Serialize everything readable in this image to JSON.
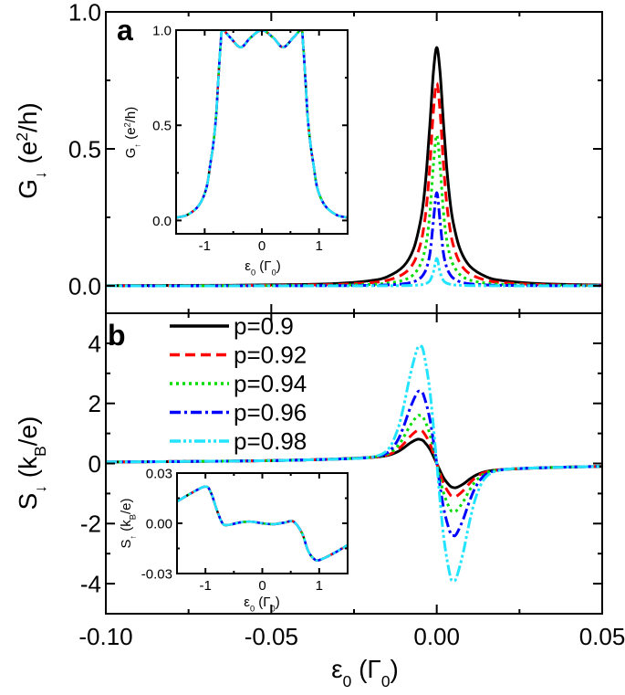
{
  "chart_data": [
    {
      "panel_label": "a",
      "type": "line",
      "ylabel": {
        "base": "G",
        "sub": "↓",
        "pre": " (e",
        "sup": "2",
        "post": "/h)"
      },
      "xlim": [
        -0.1,
        0.05
      ],
      "ylim": [
        -0.1,
        1.0
      ],
      "xticks": [
        "-0.10",
        "-0.05",
        "0.00",
        "0.05"
      ],
      "yticks": [
        "0.0",
        "0.5",
        "1.0"
      ],
      "x": [
        -0.1,
        -0.06,
        -0.04,
        -0.03,
        -0.02,
        -0.015,
        -0.01,
        -0.007,
        -0.005,
        -0.004,
        -0.003,
        -0.002,
        -0.001,
        0,
        0.001,
        0.002,
        0.003,
        0.004,
        0.005,
        0.007,
        0.01,
        0.015,
        0.02,
        0.03,
        0.04,
        0.05
      ],
      "series": [
        {
          "name": "p=0.9",
          "color": "#000000",
          "style": "solid",
          "values": [
            0.0008,
            0.0022,
            0.0049,
            0.0086,
            0.019,
            0.033,
            0.072,
            0.135,
            0.23,
            0.31,
            0.435,
            0.6,
            0.78,
            0.87,
            0.78,
            0.6,
            0.435,
            0.31,
            0.23,
            0.135,
            0.072,
            0.033,
            0.019,
            0.0086,
            0.0049,
            0.003
          ]
        },
        {
          "name": "p=0.92",
          "color": "#ff0000",
          "style": "dash",
          "values": [
            0.0005,
            0.0013,
            0.0029,
            0.0051,
            0.0114,
            0.02,
            0.044,
            0.084,
            0.148,
            0.208,
            0.303,
            0.451,
            0.638,
            0.74,
            0.638,
            0.451,
            0.303,
            0.208,
            0.148,
            0.084,
            0.044,
            0.02,
            0.0114,
            0.0051,
            0.0029,
            0.0018
          ]
        },
        {
          "name": "p=0.94",
          "color": "#00dd00",
          "style": "dot",
          "values": [
            0.0002,
            0.0006,
            0.0014,
            0.0024,
            0.0054,
            0.0096,
            0.021,
            0.041,
            0.076,
            0.11,
            0.169,
            0.275,
            0.44,
            0.55,
            0.44,
            0.275,
            0.169,
            0.11,
            0.076,
            0.041,
            0.021,
            0.0096,
            0.0054,
            0.0024,
            0.0014,
            0.0009
          ]
        },
        {
          "name": "p=0.96",
          "color": "#0000ff",
          "style": "dashdot",
          "values": [
            0.0001,
            0.0002,
            0.0005,
            0.0008,
            0.0019,
            0.0034,
            0.0075,
            0.015,
            0.028,
            0.042,
            0.068,
            0.122,
            0.236,
            0.34,
            0.236,
            0.122,
            0.068,
            0.042,
            0.028,
            0.015,
            0.0075,
            0.0034,
            0.0019,
            0.0008,
            0.0005,
            0.0003
          ]
        },
        {
          "name": "p=0.98",
          "color": "#22e4ff",
          "style": "dashdotdot",
          "values": [
            0,
            0,
            0.0001,
            0.0001,
            0.0002,
            0.0004,
            0.001,
            0.002,
            0.0038,
            0.0059,
            0.01,
            0.02,
            0.05,
            0.1,
            0.05,
            0.02,
            0.01,
            0.0059,
            0.0038,
            0.002,
            0.001,
            0.0004,
            0.0002,
            0.0001,
            0.0001,
            0
          ]
        }
      ],
      "inset": {
        "ylabel": {
          "base": "G",
          "sub": "↑",
          "pre": " (e",
          "sup": "2",
          "post": "/h)"
        },
        "xlabel": {
          "base": "ε",
          "sub": "0",
          "pre": " (Γ",
          "sub2": "0",
          "post": ")"
        },
        "xlim": [
          -1.5,
          1.5
        ],
        "ylim": [
          -0.07,
          1.0
        ],
        "xticks": [
          "-1",
          "0",
          "1"
        ],
        "yticks": [
          "0.0",
          "0.5",
          "1.0"
        ],
        "note_all_series_overlap": true,
        "x": [
          -1.5,
          -1.3,
          -1.1,
          -0.97,
          -0.9,
          -0.85,
          -0.8,
          -0.76,
          -0.72,
          -0.69,
          -0.55,
          -0.37,
          -0.2,
          0,
          0.2,
          0.37,
          0.55,
          0.69,
          0.72,
          0.76,
          0.8,
          0.85,
          0.9,
          0.97,
          1.1,
          1.3,
          1.5
        ],
        "values": [
          0.015,
          0.03,
          0.08,
          0.17,
          0.3,
          0.4,
          0.55,
          0.75,
          0.93,
          1.0,
          0.96,
          0.91,
          0.96,
          1.0,
          0.96,
          0.91,
          0.96,
          1.0,
          0.93,
          0.75,
          0.55,
          0.4,
          0.3,
          0.17,
          0.08,
          0.03,
          0.015
        ]
      }
    },
    {
      "panel_label": "b",
      "type": "line",
      "ylabel": {
        "base": "S",
        "sub": "↓",
        "pre": " (k",
        "sub2": "B",
        "post": "/e)"
      },
      "xlabel": {
        "base": "ε",
        "sub": "0",
        "pre": " (Γ",
        "sub2": "0",
        "post": ")"
      },
      "xlim": [
        -0.1,
        0.05
      ],
      "ylim": [
        -5,
        5
      ],
      "xticks": [
        "-0.10",
        "-0.05",
        "0.00",
        "0.05"
      ],
      "yticks": [
        "-4",
        "-2",
        "0",
        "2",
        "4"
      ],
      "legend": {
        "placement": "top-left"
      },
      "x": [
        -0.1,
        -0.06,
        -0.04,
        -0.03,
        -0.02,
        -0.015,
        -0.012,
        -0.01,
        -0.008,
        -0.006,
        -0.005,
        -0.004,
        -0.002,
        0,
        0.002,
        0.004,
        0.005,
        0.006,
        0.008,
        0.01,
        0.012,
        0.015,
        0.02,
        0.03,
        0.04,
        0.05
      ],
      "series": [
        {
          "name": "p=0.9",
          "color": "#000000",
          "style": "solid",
          "values": [
            0.05,
            0.081,
            0.118,
            0.15,
            0.201,
            0.264,
            0.379,
            0.518,
            0.684,
            0.799,
            0.8,
            0.747,
            0.461,
            0,
            -0.461,
            -0.747,
            -0.8,
            -0.799,
            -0.684,
            -0.518,
            -0.379,
            -0.264,
            -0.201,
            -0.15,
            -0.118,
            -0.096
          ]
        },
        {
          "name": "p=0.92",
          "color": "#ff0000",
          "style": "dash",
          "values": [
            0.05,
            0.081,
            0.118,
            0.15,
            0.202,
            0.28,
            0.446,
            0.651,
            0.904,
            1.088,
            1.1,
            1.034,
            0.644,
            0,
            -0.644,
            -1.034,
            -1.1,
            -1.088,
            -0.904,
            -0.651,
            -0.446,
            -0.28,
            -0.202,
            -0.15,
            -0.118,
            -0.096
          ]
        },
        {
          "name": "p=0.94",
          "color": "#00dd00",
          "style": "dot",
          "values": [
            0.05,
            0.081,
            0.118,
            0.15,
            0.203,
            0.308,
            0.557,
            0.874,
            1.27,
            1.569,
            1.6,
            1.513,
            0.949,
            0,
            -0.949,
            -1.513,
            -1.6,
            -1.569,
            -1.27,
            -0.874,
            -0.557,
            -0.308,
            -0.203,
            -0.15,
            -0.118,
            -0.096
          ]
        },
        {
          "name": "p=0.96",
          "color": "#0000ff",
          "style": "dashdot",
          "values": [
            0.05,
            0.081,
            0.118,
            0.15,
            0.205,
            0.352,
            0.734,
            1.231,
            1.857,
            2.34,
            2.4,
            2.28,
            1.436,
            0,
            -1.436,
            -2.28,
            -2.4,
            -2.34,
            -1.857,
            -1.231,
            -0.734,
            -0.352,
            -0.205,
            -0.15,
            -0.118,
            -0.096
          ]
        },
        {
          "name": "p=0.98",
          "color": "#22e4ff",
          "style": "dashdotdot",
          "values": [
            0.05,
            0.081,
            0.118,
            0.15,
            0.208,
            0.435,
            1.067,
            1.9,
            2.956,
            3.784,
            3.9,
            3.717,
            2.349,
            0,
            -2.349,
            -3.717,
            -3.9,
            -3.784,
            -2.956,
            -1.9,
            -1.067,
            -0.435,
            -0.208,
            -0.15,
            -0.118,
            -0.096
          ]
        }
      ],
      "inset": {
        "ylabel": {
          "base": "S",
          "sub": "↑",
          "pre": " (k",
          "sub2": "B",
          "post": "/e)"
        },
        "xlabel": {
          "base": "ε",
          "sub": "0",
          "pre": " (Γ",
          "sub2": "0",
          "post": ")"
        },
        "xlim": [
          -1.5,
          1.5
        ],
        "ylim": [
          -0.03,
          0.03
        ],
        "xticks": [
          "-1",
          "0",
          "1"
        ],
        "yticks": [
          "-0.03",
          "0.00",
          "0.03"
        ],
        "note_all_series_overlap": true,
        "x": [
          -1.5,
          -1.25,
          -1.0,
          -0.9,
          -0.8,
          -0.7,
          -0.6,
          -0.4,
          -0.2,
          0,
          0.2,
          0.4,
          0.55,
          0.7,
          0.8,
          0.9,
          1.0,
          1.25,
          1.5
        ],
        "values": [
          0.013,
          0.018,
          0.022,
          0.018,
          0.008,
          0.0,
          -0.001,
          0.0005,
          0.001,
          0.0,
          -0.0005,
          0.0005,
          0.001,
          -0.006,
          -0.016,
          -0.021,
          -0.022,
          -0.018,
          -0.013
        ]
      }
    }
  ]
}
